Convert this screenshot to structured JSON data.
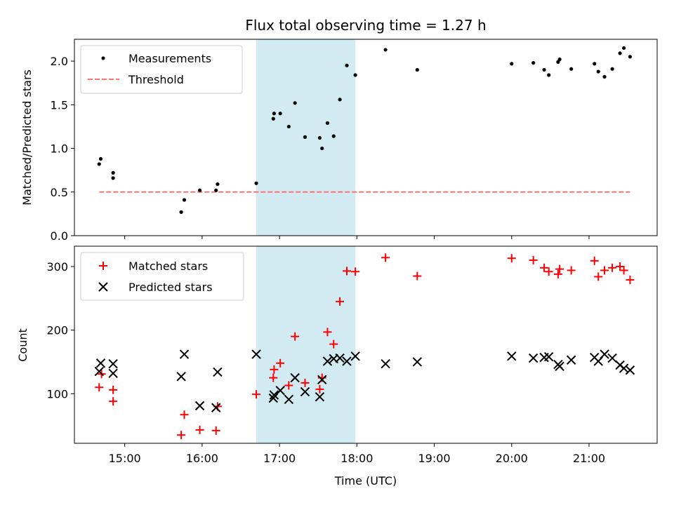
{
  "chart_data": [
    {
      "type": "scatter",
      "title": "Flux total observing time = 1.27 h",
      "xlabel": "",
      "ylabel": "Matched/Predicted stars",
      "ylim": [
        0,
        2.25
      ],
      "yticks": [
        "0.0",
        "0.5",
        "1.0",
        "1.5",
        "2.0"
      ],
      "ytick_values": [
        0,
        0.5,
        1.0,
        1.5,
        2.0
      ],
      "legend_placement": "upper-left",
      "highlight_span_hours": [
        16.7,
        17.98
      ],
      "highlight_color": "#add8e6",
      "series": [
        {
          "name": "Measurements",
          "marker": "dot",
          "color": "#000000",
          "points": [
            [
              14.67,
              0.82
            ],
            [
              14.69,
              0.88
            ],
            [
              14.85,
              0.72
            ],
            [
              14.85,
              0.66
            ],
            [
              15.73,
              0.27
            ],
            [
              15.77,
              0.41
            ],
            [
              15.97,
              0.52
            ],
            [
              16.18,
              0.52
            ],
            [
              16.2,
              0.59
            ],
            [
              16.7,
              0.6
            ],
            [
              16.92,
              1.34
            ],
            [
              16.93,
              1.4
            ],
            [
              17.01,
              1.4
            ],
            [
              17.12,
              1.25
            ],
            [
              17.2,
              1.52
            ],
            [
              17.33,
              1.13
            ],
            [
              17.52,
              1.12
            ],
            [
              17.55,
              1.0
            ],
            [
              17.62,
              1.29
            ],
            [
              17.7,
              1.14
            ],
            [
              17.78,
              1.56
            ],
            [
              17.87,
              1.95
            ],
            [
              17.98,
              1.84
            ],
            [
              18.37,
              2.13
            ],
            [
              18.78,
              1.9
            ],
            [
              20.0,
              1.97
            ],
            [
              20.28,
              1.98
            ],
            [
              20.42,
              1.9
            ],
            [
              20.48,
              1.84
            ],
            [
              20.6,
              1.99
            ],
            [
              20.62,
              2.02
            ],
            [
              20.77,
              1.91
            ],
            [
              21.07,
              1.97
            ],
            [
              21.12,
              1.88
            ],
            [
              21.2,
              1.82
            ],
            [
              21.3,
              1.91
            ],
            [
              21.4,
              2.09
            ],
            [
              21.45,
              2.15
            ],
            [
              21.53,
              2.05
            ]
          ]
        },
        {
          "name": "Threshold",
          "marker": "dashed-line",
          "color": "#ff7070",
          "points": [
            [
              14.67,
              0.5
            ],
            [
              21.53,
              0.5
            ]
          ]
        }
      ]
    },
    {
      "type": "scatter",
      "title": "",
      "xlabel": "Time (UTC)",
      "ylabel": "Count",
      "ylim": [
        22,
        332
      ],
      "xlim_hours": [
        14.35,
        21.88
      ],
      "yticks": [
        "100",
        "200",
        "300"
      ],
      "ytick_values": [
        100,
        200,
        300
      ],
      "xticks": [
        "15:00",
        "16:00",
        "17:00",
        "18:00",
        "19:00",
        "20:00",
        "21:00"
      ],
      "xtick_values": [
        15,
        16,
        17,
        18,
        19,
        20,
        21
      ],
      "legend_placement": "upper-left",
      "highlight_span_hours": [
        16.7,
        17.98
      ],
      "highlight_color": "#add8e6",
      "series": [
        {
          "name": "Matched stars",
          "marker": "plus",
          "color": "#ff0000",
          "points": [
            [
              14.67,
              110
            ],
            [
              14.7,
              131
            ],
            [
              14.85,
              106
            ],
            [
              14.85,
              88
            ],
            [
              15.73,
              35
            ],
            [
              15.77,
              67
            ],
            [
              15.97,
              43
            ],
            [
              16.18,
              42
            ],
            [
              16.2,
              80
            ],
            [
              16.7,
              99
            ],
            [
              16.92,
              125
            ],
            [
              16.93,
              138
            ],
            [
              17.01,
              148
            ],
            [
              17.12,
              113
            ],
            [
              17.2,
              190
            ],
            [
              17.33,
              117
            ],
            [
              17.52,
              107
            ],
            [
              17.55,
              125
            ],
            [
              17.62,
              197
            ],
            [
              17.7,
              178
            ],
            [
              17.78,
              245
            ],
            [
              17.87,
              293
            ],
            [
              17.98,
              292
            ],
            [
              18.37,
              314
            ],
            [
              18.78,
              285
            ],
            [
              20.0,
              313
            ],
            [
              20.28,
              310
            ],
            [
              20.42,
              298
            ],
            [
              20.48,
              292
            ],
            [
              20.6,
              288
            ],
            [
              20.62,
              296
            ],
            [
              20.77,
              294
            ],
            [
              21.07,
              309
            ],
            [
              21.12,
              284
            ],
            [
              21.2,
              294
            ],
            [
              21.3,
              298
            ],
            [
              21.4,
              300
            ],
            [
              21.45,
              294
            ],
            [
              21.53,
              279
            ]
          ]
        },
        {
          "name": "Predicted stars",
          "marker": "x",
          "color": "#000000",
          "points": [
            [
              14.67,
              135
            ],
            [
              14.69,
              148
            ],
            [
              14.85,
              147
            ],
            [
              14.85,
              132
            ],
            [
              15.73,
              127
            ],
            [
              15.77,
              162
            ],
            [
              15.97,
              81
            ],
            [
              16.18,
              78
            ],
            [
              16.2,
              134
            ],
            [
              16.7,
              162
            ],
            [
              16.92,
              93
            ],
            [
              16.93,
              98
            ],
            [
              17.01,
              105
            ],
            [
              17.12,
              91
            ],
            [
              17.2,
              125
            ],
            [
              17.33,
              103
            ],
            [
              17.52,
              95
            ],
            [
              17.55,
              122
            ],
            [
              17.62,
              151
            ],
            [
              17.7,
              155
            ],
            [
              17.78,
              156
            ],
            [
              17.87,
              151
            ],
            [
              17.98,
              159
            ],
            [
              18.37,
              147
            ],
            [
              18.78,
              150
            ],
            [
              20.0,
              159
            ],
            [
              20.28,
              156
            ],
            [
              20.42,
              157
            ],
            [
              20.48,
              158
            ],
            [
              20.6,
              146
            ],
            [
              20.62,
              143
            ],
            [
              20.77,
              153
            ],
            [
              21.07,
              157
            ],
            [
              21.12,
              151
            ],
            [
              21.2,
              162
            ],
            [
              21.3,
              156
            ],
            [
              21.4,
              145
            ],
            [
              21.45,
              140
            ],
            [
              21.53,
              137
            ]
          ]
        }
      ]
    }
  ]
}
